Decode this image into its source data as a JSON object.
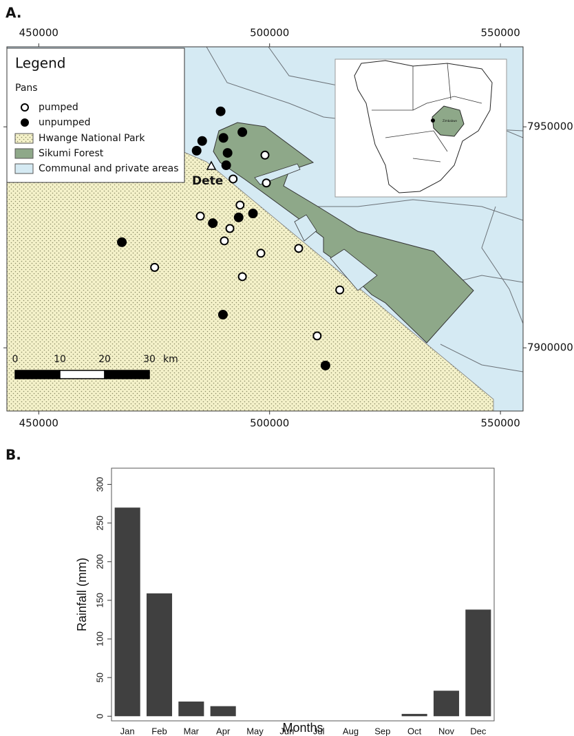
{
  "chart_data": [
    {
      "type": "map",
      "panel": "A.",
      "legend_title": "Legend",
      "legend_group": "Pans",
      "xlim": [
        443100,
        554900
      ],
      "ylim": [
        7885700,
        7968100
      ],
      "xticks": [
        450000,
        500000,
        550000
      ],
      "yticks": [
        7900000,
        7950000
      ],
      "series": [
        {
          "name": "pumped",
          "color": "#ffffff",
          "x": [
            499000,
            492100,
            499300,
            493600,
            485000,
            491400,
            490200,
            498100,
            506300,
            475100,
            494100,
            515200,
            510300
          ],
          "y": [
            7943600,
            7938200,
            7937300,
            7932300,
            7929800,
            7927000,
            7924200,
            7921400,
            7922500,
            7918200,
            7916100,
            7913100,
            7902700
          ]
        },
        {
          "name": "unpumped",
          "color": "#000000",
          "x": [
            489400,
            494100,
            490000,
            485400,
            490900,
            484200,
            490600,
            487700,
            496400,
            493300,
            468000,
            489900,
            512100
          ],
          "y": [
            7953500,
            7948800,
            7947500,
            7946800,
            7944100,
            7944600,
            7941300,
            7928200,
            7930400,
            7929500,
            7923900,
            7907500,
            7896000
          ]
        }
      ],
      "areas": [
        {
          "name": "Hwange National Park",
          "color": "#f4f1c9"
        },
        {
          "name": "Sikumi Forest",
          "color": "#8ea889"
        },
        {
          "name": "Communal and private areas",
          "color": "#d5eaf3"
        }
      ],
      "place_label": "Dete",
      "scale_bar": [
        0,
        10,
        20,
        30
      ],
      "scale_unit": "km",
      "inset_label": "Zimbabwe"
    },
    {
      "type": "bar",
      "panel": "B.",
      "categories": [
        "Jan",
        "Feb",
        "Mar",
        "Apr",
        "May",
        "Jun",
        "Jul",
        "Aug",
        "Sep",
        "Oct",
        "Nov",
        "Dec"
      ],
      "values": [
        270,
        159,
        19,
        13,
        0,
        0,
        0,
        0,
        0,
        3,
        33,
        138
      ],
      "color": "#404040",
      "ylim": [
        -6,
        321
      ],
      "yticks": [
        0,
        50,
        100,
        150,
        200,
        250,
        300
      ],
      "xlabel": "Months",
      "ylabel": "Rainfall (mm)"
    }
  ]
}
